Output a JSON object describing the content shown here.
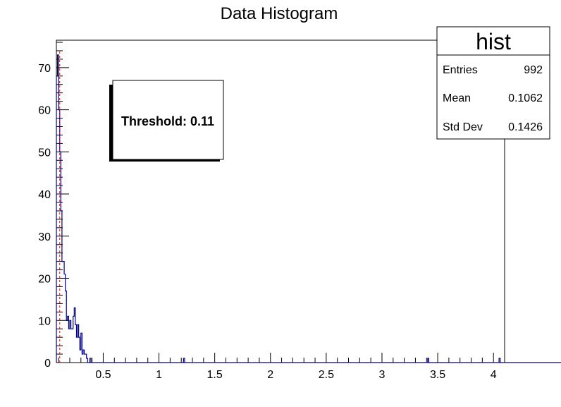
{
  "chart_data": {
    "type": "bar",
    "title": "Data Histogram",
    "xlabel": "",
    "ylabel": "",
    "xlim": [
      0.08,
      4.1
    ],
    "ylim": [
      0,
      76.5
    ],
    "x_ticks": [
      0.5,
      1,
      1.5,
      2,
      2.5,
      3,
      3.5,
      4
    ],
    "x_tick_labels": [
      "0.5",
      "1",
      "1.5",
      "2",
      "2.5",
      "3",
      "3.5",
      "4"
    ],
    "y_ticks": [
      0,
      10,
      20,
      30,
      40,
      50,
      60,
      70
    ],
    "y_tick_labels": [
      "0",
      "10",
      "20",
      "30",
      "40",
      "50",
      "60",
      "70"
    ],
    "grid": false,
    "histogram_color": "#000080",
    "threshold_color": "#ff0000",
    "threshold": 0.11,
    "bins": {
      "start": 0.08,
      "width": 0.01,
      "counts": [
        68,
        73,
        60,
        50,
        36,
        24,
        24,
        21,
        17,
        10,
        11,
        8,
        10,
        8,
        8,
        11,
        13,
        9,
        6,
        9,
        6,
        3,
        7,
        2,
        3,
        2,
        2,
        1,
        0,
        0,
        1,
        0,
        0,
        0,
        0,
        0,
        0,
        0,
        0,
        0,
        0,
        0,
        0,
        0,
        0,
        0,
        0,
        0,
        0,
        0,
        0,
        0,
        0,
        0,
        0,
        0,
        0,
        0,
        0,
        0,
        0,
        0,
        0,
        0,
        0,
        0,
        0,
        0,
        0,
        0,
        0,
        0,
        0,
        0,
        0,
        0,
        0,
        0,
        0,
        0,
        0,
        0,
        0,
        0,
        0,
        0,
        0,
        0,
        0,
        0,
        0,
        0,
        0,
        0,
        0,
        0,
        0,
        0,
        0,
        0,
        0,
        0,
        0,
        0,
        0,
        0,
        0,
        0,
        0,
        0,
        0,
        0,
        0,
        0,
        0,
        0,
        0,
        0,
        0,
        0,
        0,
        0,
        0,
        0,
        0,
        0,
        0,
        0,
        0,
        0,
        0,
        0,
        0,
        0,
        0,
        0,
        0,
        0,
        0,
        0,
        0,
        0,
        0,
        0,
        0,
        0,
        0,
        0,
        0,
        0,
        0,
        0,
        0,
        0,
        0,
        0,
        0,
        0,
        0,
        0,
        0,
        0,
        0,
        0,
        0,
        0,
        0,
        0,
        0,
        0,
        0,
        0,
        0,
        0,
        0,
        0,
        0,
        0,
        0,
        0,
        0,
        0,
        0,
        0,
        0,
        0,
        0,
        0,
        0,
        0,
        0,
        0,
        0,
        0,
        0,
        0,
        0,
        0,
        0,
        0,
        0,
        0,
        0,
        0,
        0,
        0,
        0,
        0,
        0,
        0,
        0,
        0,
        0,
        0,
        0,
        0,
        0,
        0,
        0,
        0,
        0,
        0,
        0,
        0,
        0,
        0,
        0,
        0,
        0,
        0,
        0,
        0,
        0,
        0,
        0,
        0,
        0,
        0,
        0,
        0,
        0,
        0,
        0,
        0,
        0,
        0,
        0,
        0,
        0,
        0,
        0,
        0,
        0,
        0,
        0,
        0,
        0,
        0,
        0,
        0,
        0,
        0,
        0,
        0,
        0,
        0,
        0,
        0,
        0,
        0,
        0,
        0,
        0,
        0,
        0,
        0,
        0,
        0,
        0,
        0,
        0,
        0,
        0,
        0,
        0,
        0,
        0,
        0,
        0,
        0,
        0,
        0,
        0,
        0,
        0,
        0,
        0,
        0,
        0,
        0,
        0,
        0,
        0,
        0,
        0,
        0,
        0,
        0,
        0,
        0,
        0,
        0,
        0,
        0,
        0,
        0,
        0,
        0,
        0,
        0,
        0,
        0,
        0,
        0,
        0,
        0,
        0,
        0,
        0,
        0,
        0,
        0,
        0,
        0,
        0,
        0,
        0,
        0,
        0,
        0,
        0,
        0,
        0,
        0,
        0,
        0,
        0,
        0,
        0,
        0,
        0,
        0,
        0,
        0,
        0,
        0,
        0,
        0,
        0,
        0,
        0,
        0,
        0,
        0,
        0,
        0,
        0,
        0,
        0,
        0,
        0,
        0,
        0,
        0,
        0,
        0,
        0,
        0,
        0,
        0,
        0,
        0,
        0,
        0,
        0,
        0,
        0,
        0,
        0,
        0,
        0,
        0,
        0,
        0,
        0,
        0,
        0,
        0,
        0,
        0,
        0,
        0,
        0,
        0,
        0,
        0,
        0,
        0,
        0,
        0,
        0,
        0,
        0,
        0,
        0,
        0,
        0,
        0,
        0,
        0,
        0,
        0,
        0,
        0,
        0,
        0,
        0,
        0,
        0,
        0,
        0,
        0,
        0,
        0,
        0,
        0,
        0,
        0,
        0,
        0,
        0,
        0,
        0,
        0,
        0,
        0,
        0,
        0,
        0,
        0,
        0,
        0,
        0,
        0,
        0,
        0,
        0,
        0,
        0,
        0,
        0,
        0,
        0,
        0,
        0,
        0
      ]
    },
    "outliers": [
      {
        "x": 1.22,
        "count": 1
      },
      {
        "x": 3.41,
        "count": 1
      },
      {
        "x": 4.05,
        "count": 1
      }
    ],
    "threshold_box": {
      "label": "Threshold: 0.11"
    },
    "stats_box": {
      "title": "hist",
      "rows": [
        {
          "label": "Entries",
          "value": "992"
        },
        {
          "label": "Mean",
          "value": "0.1062"
        },
        {
          "label": "Std Dev",
          "value": "0.1426"
        }
      ]
    }
  }
}
